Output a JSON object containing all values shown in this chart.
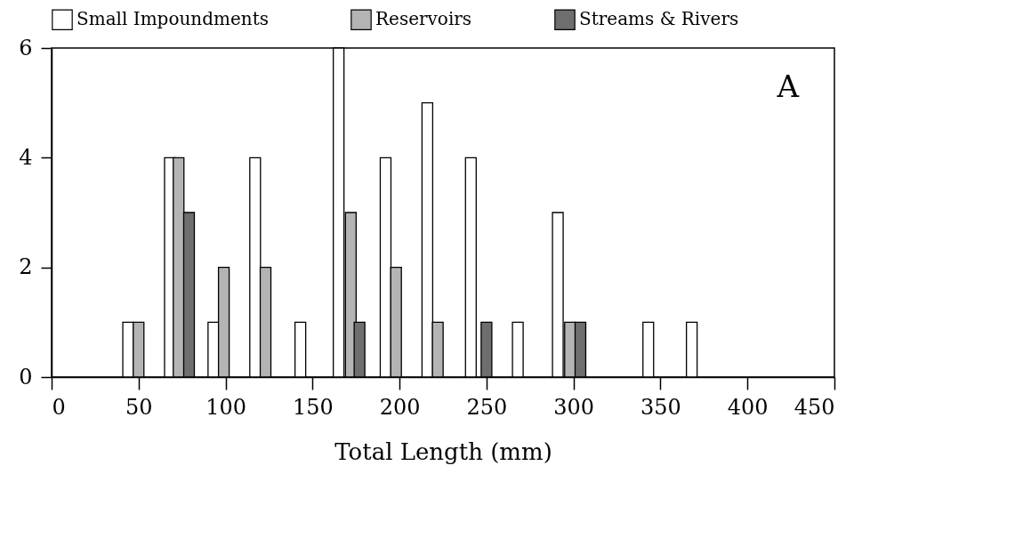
{
  "chart_data": {
    "type": "bar",
    "xlabel": "Total Length (mm)",
    "xlim": [
      0,
      450
    ],
    "xticks": [
      0,
      50,
      100,
      150,
      200,
      250,
      300,
      350,
      400,
      450
    ],
    "ylim": [
      0,
      6
    ],
    "yticks": [
      0,
      2,
      4,
      6
    ],
    "grid": false,
    "legend": "top",
    "annotations": [
      "A"
    ],
    "series": [
      {
        "name": "Small Impoundments",
        "color": "#ffffff",
        "x": [
          44,
          68,
          93,
          117,
          143,
          165,
          192,
          216,
          241,
          268,
          291,
          343,
          368
        ],
        "values": [
          1,
          4,
          1,
          4,
          1,
          6,
          4,
          5,
          4,
          1,
          3,
          1,
          1
        ]
      },
      {
        "name": "Reservoirs",
        "color": "#b4b4b4",
        "x": [
          50,
          73,
          99,
          123,
          172,
          198,
          222,
          298
        ],
        "values": [
          1,
          4,
          2,
          2,
          3,
          2,
          1,
          1
        ]
      },
      {
        "name": "Streams & Rivers",
        "color": "#6e6e6e",
        "x": [
          79,
          177,
          250,
          304
        ],
        "values": [
          3,
          1,
          1,
          1
        ]
      }
    ]
  }
}
